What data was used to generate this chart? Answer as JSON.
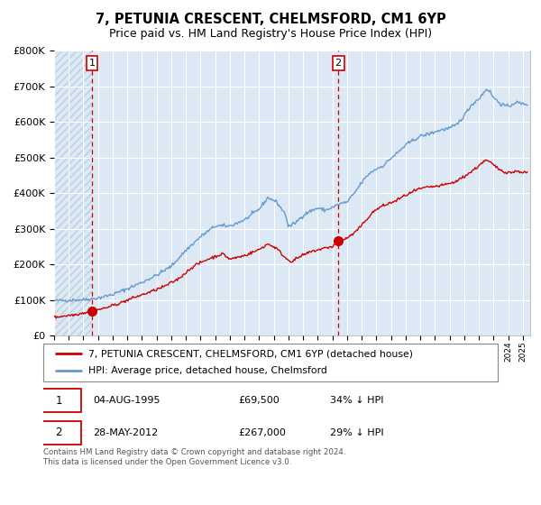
{
  "title": "7, PETUNIA CRESCENT, CHELMSFORD, CM1 6YP",
  "subtitle": "Price paid vs. HM Land Registry's House Price Index (HPI)",
  "legend_line1": "7, PETUNIA CRESCENT, CHELMSFORD, CM1 6YP (detached house)",
  "legend_line2": "HPI: Average price, detached house, Chelmsford",
  "annotation1_date": "04-AUG-1995",
  "annotation1_price": "£69,500",
  "annotation1_hpi": "34% ↓ HPI",
  "annotation1_year": 1995.58,
  "annotation1_value": 69500,
  "annotation2_date": "28-MAY-2012",
  "annotation2_price": "£267,000",
  "annotation2_hpi": "29% ↓ HPI",
  "annotation2_year": 2012.4,
  "annotation2_value": 267000,
  "xmin": 1993,
  "xmax": 2025.5,
  "ymin": 0,
  "ymax": 800000,
  "yticks": [
    0,
    100000,
    200000,
    300000,
    400000,
    500000,
    600000,
    700000,
    800000
  ],
  "plot_bg_color": "#dce9f5",
  "hatch_color": "#b8cfe0",
  "grid_color": "#ffffff",
  "red_line_color": "#cc0000",
  "blue_line_color": "#6699cc",
  "marker_color": "#cc0000",
  "dashed_line_color": "#cc0000",
  "footer_text": "Contains HM Land Registry data © Crown copyright and database right 2024.\nThis data is licensed under the Open Government Licence v3.0."
}
